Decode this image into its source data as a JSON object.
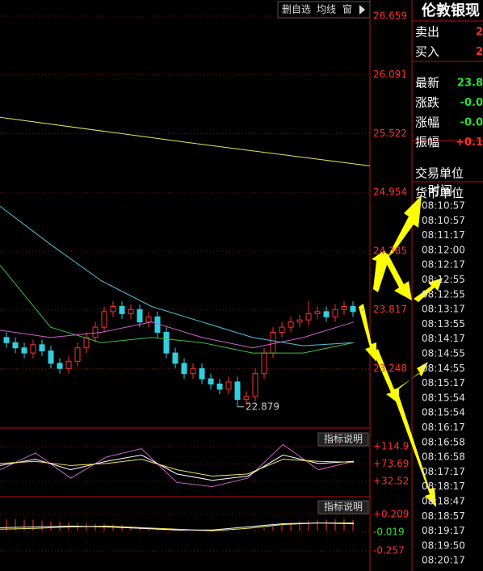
{
  "toolbar": [
    "删自选",
    "均线",
    "窗"
  ],
  "price_axis": {
    "ylim": [
      22.674,
      26.815
    ],
    "ticks": [
      26.659,
      26.091,
      25.522,
      24.954,
      24.385,
      23.817,
      23.248
    ]
  },
  "candles": [
    [
      23.55,
      23.6,
      23.45,
      23.5
    ],
    [
      23.5,
      23.55,
      23.4,
      23.45
    ],
    [
      23.45,
      23.5,
      23.35,
      23.4
    ],
    [
      23.4,
      23.53,
      23.35,
      23.48
    ],
    [
      23.48,
      23.53,
      23.37,
      23.42
    ],
    [
      23.42,
      23.47,
      23.25,
      23.3
    ],
    [
      23.3,
      23.35,
      23.2,
      23.25
    ],
    [
      23.25,
      23.37,
      23.2,
      23.32
    ],
    [
      23.32,
      23.5,
      23.27,
      23.45
    ],
    [
      23.45,
      23.6,
      23.4,
      23.55
    ],
    [
      23.55,
      23.7,
      23.5,
      23.65
    ],
    [
      23.65,
      23.85,
      23.6,
      23.8
    ],
    [
      23.8,
      23.9,
      23.75,
      23.85
    ],
    [
      23.85,
      23.9,
      23.73,
      23.78
    ],
    [
      23.78,
      23.87,
      23.73,
      23.82
    ],
    [
      23.82,
      23.87,
      23.65,
      23.7
    ],
    [
      23.7,
      23.8,
      23.65,
      23.75
    ],
    [
      23.75,
      23.8,
      23.55,
      23.6
    ],
    [
      23.6,
      23.65,
      23.35,
      23.4
    ],
    [
      23.4,
      23.45,
      23.25,
      23.3
    ],
    [
      23.3,
      23.35,
      23.15,
      23.2
    ],
    [
      23.2,
      23.3,
      23.15,
      23.25
    ],
    [
      23.25,
      23.3,
      23.1,
      23.15
    ],
    [
      23.15,
      23.2,
      23.05,
      23.1
    ],
    [
      23.1,
      23.15,
      23.0,
      23.05
    ],
    [
      23.05,
      23.17,
      23.0,
      23.12
    ],
    [
      23.12,
      23.17,
      22.879,
      22.95
    ],
    [
      22.95,
      23.03,
      22.9,
      22.98
    ],
    [
      22.98,
      23.25,
      22.93,
      23.2
    ],
    [
      23.2,
      23.45,
      23.15,
      23.4
    ],
    [
      23.4,
      23.65,
      23.35,
      23.6
    ],
    [
      23.6,
      23.7,
      23.55,
      23.65
    ],
    [
      23.65,
      23.75,
      23.6,
      23.7
    ],
    [
      23.7,
      23.77,
      23.65,
      23.72
    ],
    [
      23.72,
      23.9,
      23.67,
      23.78
    ],
    [
      23.78,
      23.85,
      23.73,
      23.8
    ],
    [
      23.8,
      23.85,
      23.7,
      23.75
    ],
    [
      23.75,
      23.87,
      23.7,
      23.82
    ],
    [
      23.82,
      23.9,
      23.77,
      23.85
    ],
    [
      23.85,
      23.9,
      23.75,
      23.8
    ]
  ],
  "low_label": 22.879,
  "lines": [
    {
      "color": "#e8e85a",
      "values": [
        25.68,
        25.44,
        25.21
      ]
    },
    {
      "color": "#4fc3d9",
      "values": [
        24.82,
        24.45,
        24.1,
        23.85,
        23.7,
        23.55,
        23.47,
        23.5
      ]
    },
    {
      "color": "#3fbf3f",
      "values": [
        24.25,
        23.65,
        23.5,
        23.55,
        23.5,
        23.4,
        23.4,
        23.5
      ]
    },
    {
      "color": "#d060d0",
      "values": [
        23.62,
        23.55,
        23.6,
        23.7,
        23.55,
        23.45,
        23.55,
        23.7
      ]
    }
  ],
  "indicator_1": {
    "button": "指标说明",
    "ylim": [
      -3.9,
      149.4
    ],
    "yticks": [
      {
        "value": 114.9,
        "label": "+114.9"
      },
      {
        "value": 73.69,
        "label": "+73.69"
      },
      {
        "value": 32.52,
        "label": "+32.52"
      }
    ],
    "lines": [
      {
        "color": "#d060d0",
        "values": [
          60,
          100,
          40,
          90,
          110,
          30,
          20,
          40,
          120,
          60,
          80
        ]
      },
      {
        "color": "#ffffff",
        "values": [
          70,
          85,
          60,
          80,
          95,
          50,
          35,
          45,
          95,
          75,
          80
        ]
      },
      {
        "color": "#e8e85a",
        "values": [
          75,
          80,
          70,
          75,
          85,
          60,
          45,
          50,
          85,
          80,
          78
        ]
      }
    ]
  },
  "indicator_2": {
    "button": "指标说明",
    "ylim": [
      -0.495,
      0.385
    ],
    "yticks": [
      {
        "value": 0.209,
        "label": "+0.209"
      },
      -0.019,
      -0.257
    ],
    "histogram": [
      0.15,
      0.15,
      0.14,
      0.14,
      0.13,
      0.12,
      0.12,
      0.11,
      0.1,
      0.1,
      0.09,
      0.09,
      0.08,
      0.07,
      0.06,
      0.05,
      0.04,
      0.03,
      0.02,
      0.01,
      0.01,
      0,
      0,
      0,
      0,
      0,
      0,
      0,
      0.01,
      0.03,
      0.06,
      0.08,
      0.1,
      0.12,
      0.13,
      0.14,
      0.14,
      0.15,
      0.15,
      0.14
    ],
    "lines": [
      {
        "color": "#e8e85a",
        "values": [
          0.02,
          0.03,
          0.05,
          0.06,
          0.04,
          0.02,
          0.0,
          0.03,
          0.08,
          0.1,
          0.1
        ]
      },
      {
        "color": "#ffffff",
        "values": [
          0.04,
          0.05,
          0.06,
          0.05,
          0.03,
          0.01,
          0.01,
          0.05,
          0.09,
          0.1,
          0.09
        ]
      }
    ]
  },
  "quote": {
    "title": "伦敦银现",
    "rows": [
      {
        "label": "卖出",
        "value": "2",
        "color": "#ff3030"
      },
      {
        "label": "买入",
        "value": "2",
        "color": "#ff3030"
      },
      {
        "label": "最新",
        "value": "23.8",
        "color": "#30e030"
      },
      {
        "label": "涨跌",
        "value": "-0.0",
        "color": "#30e030"
      },
      {
        "label": "涨幅",
        "value": "-0.0",
        "color": "#30e030"
      },
      {
        "label": "振幅",
        "value": "+0.1",
        "color": "#ff3030"
      },
      {
        "label": "交易单位"
      },
      {
        "label": "货币单位"
      }
    ]
  },
  "time_header": "时间",
  "times": [
    "08:10:57",
    "08:10:57",
    "08:11:17",
    "08:12:00",
    "08:12:17",
    "08:12:55",
    "08:12:55",
    "08:13:17",
    "08:13:55",
    "08:14:17",
    "08:14:55",
    "08:14:55",
    "08:15:17",
    "08:15:54",
    "08:15:54",
    "08:16:17",
    "08:16:58",
    "08:16:58",
    "08:17:17",
    "08:18:17",
    "08:18:47",
    "08:18:57",
    "08:19:17",
    "08:19:50",
    "08:20:17"
  ]
}
